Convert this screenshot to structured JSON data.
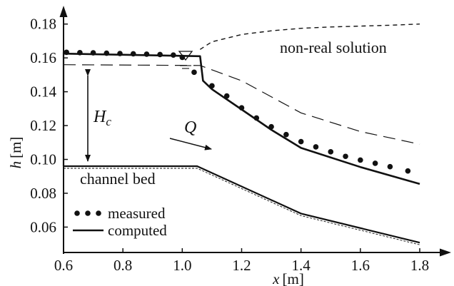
{
  "chart_data": {
    "type": "line",
    "xlabel": "x",
    "xunit": "[m]",
    "ylabel": "h",
    "yunit": "[m]",
    "xlim": [
      0.6,
      1.8
    ],
    "ylim": [
      0.045,
      0.19
    ],
    "xticks": [
      "0.6",
      "0.8",
      "1.0",
      "1.2",
      "1.4",
      "1.6",
      "1.8"
    ],
    "xtick_values": [
      0.6,
      0.8,
      1.0,
      1.2,
      1.4,
      1.6,
      1.8
    ],
    "yticks": [
      "0.06",
      "0.08",
      "0.10",
      "0.12",
      "0.14",
      "0.16",
      "0.18"
    ],
    "ytick_values": [
      0.06,
      0.08,
      0.1,
      0.12,
      0.14,
      0.16,
      0.18
    ],
    "grid": false,
    "legend_position": "bottom-left",
    "legend": [
      {
        "label": "measured",
        "style": "dots"
      },
      {
        "label": "computed",
        "style": "solid"
      }
    ],
    "annotations": {
      "non_real": "non-real solution",
      "channel_bed": "channel bed",
      "hc_main": "H",
      "hc_sub": "c",
      "q": "Q"
    },
    "series": [
      {
        "name": "measured",
        "style": "dots",
        "x": [
          0.61,
          0.655,
          0.7,
          0.745,
          0.79,
          0.835,
          0.88,
          0.925,
          0.97,
          1.0,
          1.04,
          1.1,
          1.15,
          1.2,
          1.25,
          1.3,
          1.35,
          1.4,
          1.45,
          1.5,
          1.55,
          1.6,
          1.65,
          1.7,
          1.76
        ],
        "y": [
          0.1633,
          0.1631,
          0.163,
          0.1628,
          0.1626,
          0.1624,
          0.1622,
          0.162,
          0.1617,
          0.1603,
          0.1515,
          0.1435,
          0.1375,
          0.1305,
          0.1245,
          0.1193,
          0.1147,
          0.1105,
          0.1074,
          0.1045,
          0.1018,
          0.0996,
          0.0977,
          0.0957,
          0.0932
        ]
      },
      {
        "name": "computed",
        "style": "solid",
        "x": [
          0.6,
          1.06,
          1.07,
          1.1,
          1.2,
          1.3,
          1.4,
          1.6,
          1.8
        ],
        "y": [
          0.1625,
          0.161,
          0.1465,
          0.1415,
          0.1295,
          0.1175,
          0.1068,
          0.0955,
          0.0855
        ]
      },
      {
        "style": "dashed",
        "x": [
          0.6,
          1.06,
          1.2,
          1.4,
          1.6,
          1.8
        ],
        "y": [
          0.156,
          0.1555,
          0.1465,
          0.1275,
          0.1165,
          0.109
        ]
      },
      {
        "style": "dashed-fine",
        "x": [
          1.06,
          1.1,
          1.2,
          1.3,
          1.4,
          1.5,
          1.6,
          1.7,
          1.8
        ],
        "y": [
          0.165,
          0.1695,
          0.1738,
          0.176,
          0.1775,
          0.1783,
          0.1788,
          0.1793,
          0.18
        ]
      },
      {
        "style": "bed",
        "x": [
          0.6,
          1.05,
          1.4,
          1.8
        ],
        "y": [
          0.096,
          0.096,
          0.068,
          0.0508
        ]
      }
    ]
  }
}
